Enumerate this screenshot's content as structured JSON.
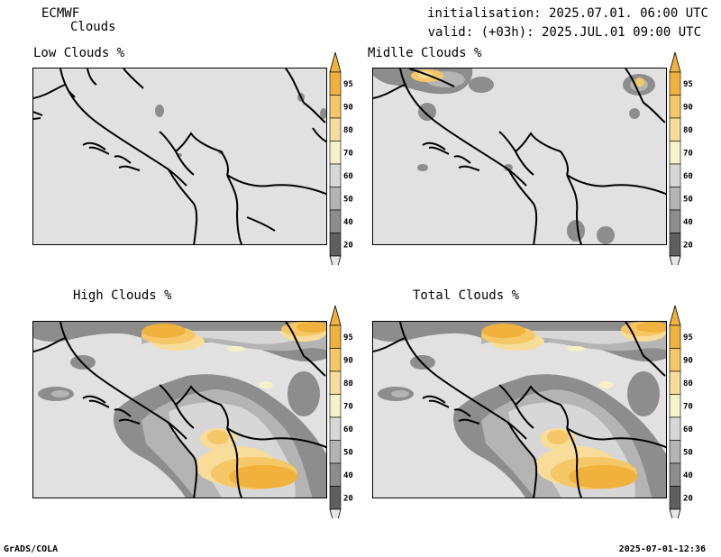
{
  "header": {
    "model": "ECMWF",
    "field": "Clouds",
    "init": "initialisation: 2025.07.01. 06:00 UTC",
    "valid": "valid: (+03h): 2025.JUL.01 09:00 UTC"
  },
  "panels": [
    {
      "title": "Low Clouds %"
    },
    {
      "title": "Midlle Clouds %"
    },
    {
      "title": "High Clouds %"
    },
    {
      "title": "Total Clouds %"
    }
  ],
  "colorbar": {
    "ticks": [
      "95",
      "90",
      "80",
      "70",
      "60",
      "50",
      "40",
      "20"
    ],
    "colors": [
      "#f0b23c",
      "#f5c767",
      "#f7dc9a",
      "#f4f2c6",
      "#d7d7d7",
      "#b4b4b4",
      "#8d8d8d",
      "#5f5f5f"
    ],
    "under_color": "#e6e6e6"
  },
  "footer": {
    "left": "GrADS/COLA",
    "right": "2025-07-01-12:36"
  }
}
